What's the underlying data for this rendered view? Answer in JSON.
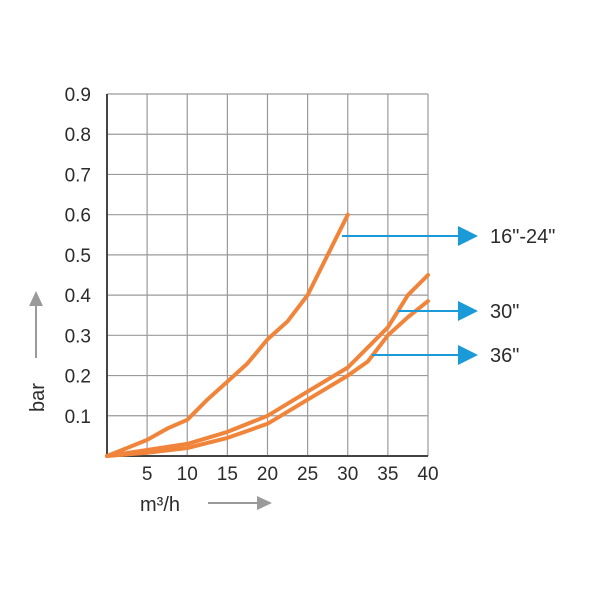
{
  "chart_data": {
    "type": "line",
    "xlabel": "m³/h",
    "ylabel": "bar",
    "xlim": [
      0,
      40
    ],
    "ylim": [
      0,
      0.9
    ],
    "x_ticks": [
      "5",
      "10",
      "15",
      "20",
      "25",
      "30",
      "35",
      "40"
    ],
    "y_ticks": [
      "0.1",
      "0.2",
      "0.3",
      "0.4",
      "0.5",
      "0.6",
      "0.7",
      "0.8",
      "0.9"
    ],
    "grid": true,
    "series_color": "#f0843a",
    "arrow_color": "#1a9ad6",
    "axis_arrow_color": "#9a9a9a",
    "series": [
      {
        "name": "16\"-24\"",
        "x": [
          0,
          2.5,
          5,
          7.5,
          10,
          12.5,
          15,
          17.5,
          20,
          22.5,
          25,
          27.5,
          30
        ],
        "y": [
          0,
          0.02,
          0.04,
          0.068,
          0.09,
          0.14,
          0.185,
          0.23,
          0.29,
          0.335,
          0.4,
          0.5,
          0.6
        ]
      },
      {
        "name": "30\"",
        "x": [
          0,
          5,
          10,
          15,
          20,
          25,
          30,
          35,
          37.5,
          40
        ],
        "y": [
          0,
          0.015,
          0.03,
          0.06,
          0.1,
          0.16,
          0.22,
          0.32,
          0.4,
          0.45
        ]
      },
      {
        "name": "36\"",
        "x": [
          0,
          5,
          10,
          15,
          20,
          25,
          30,
          32.5,
          35,
          37.5,
          40
        ],
        "y": [
          0,
          0.008,
          0.02,
          0.045,
          0.08,
          0.14,
          0.2,
          0.235,
          0.3,
          0.345,
          0.385
        ]
      }
    ]
  }
}
